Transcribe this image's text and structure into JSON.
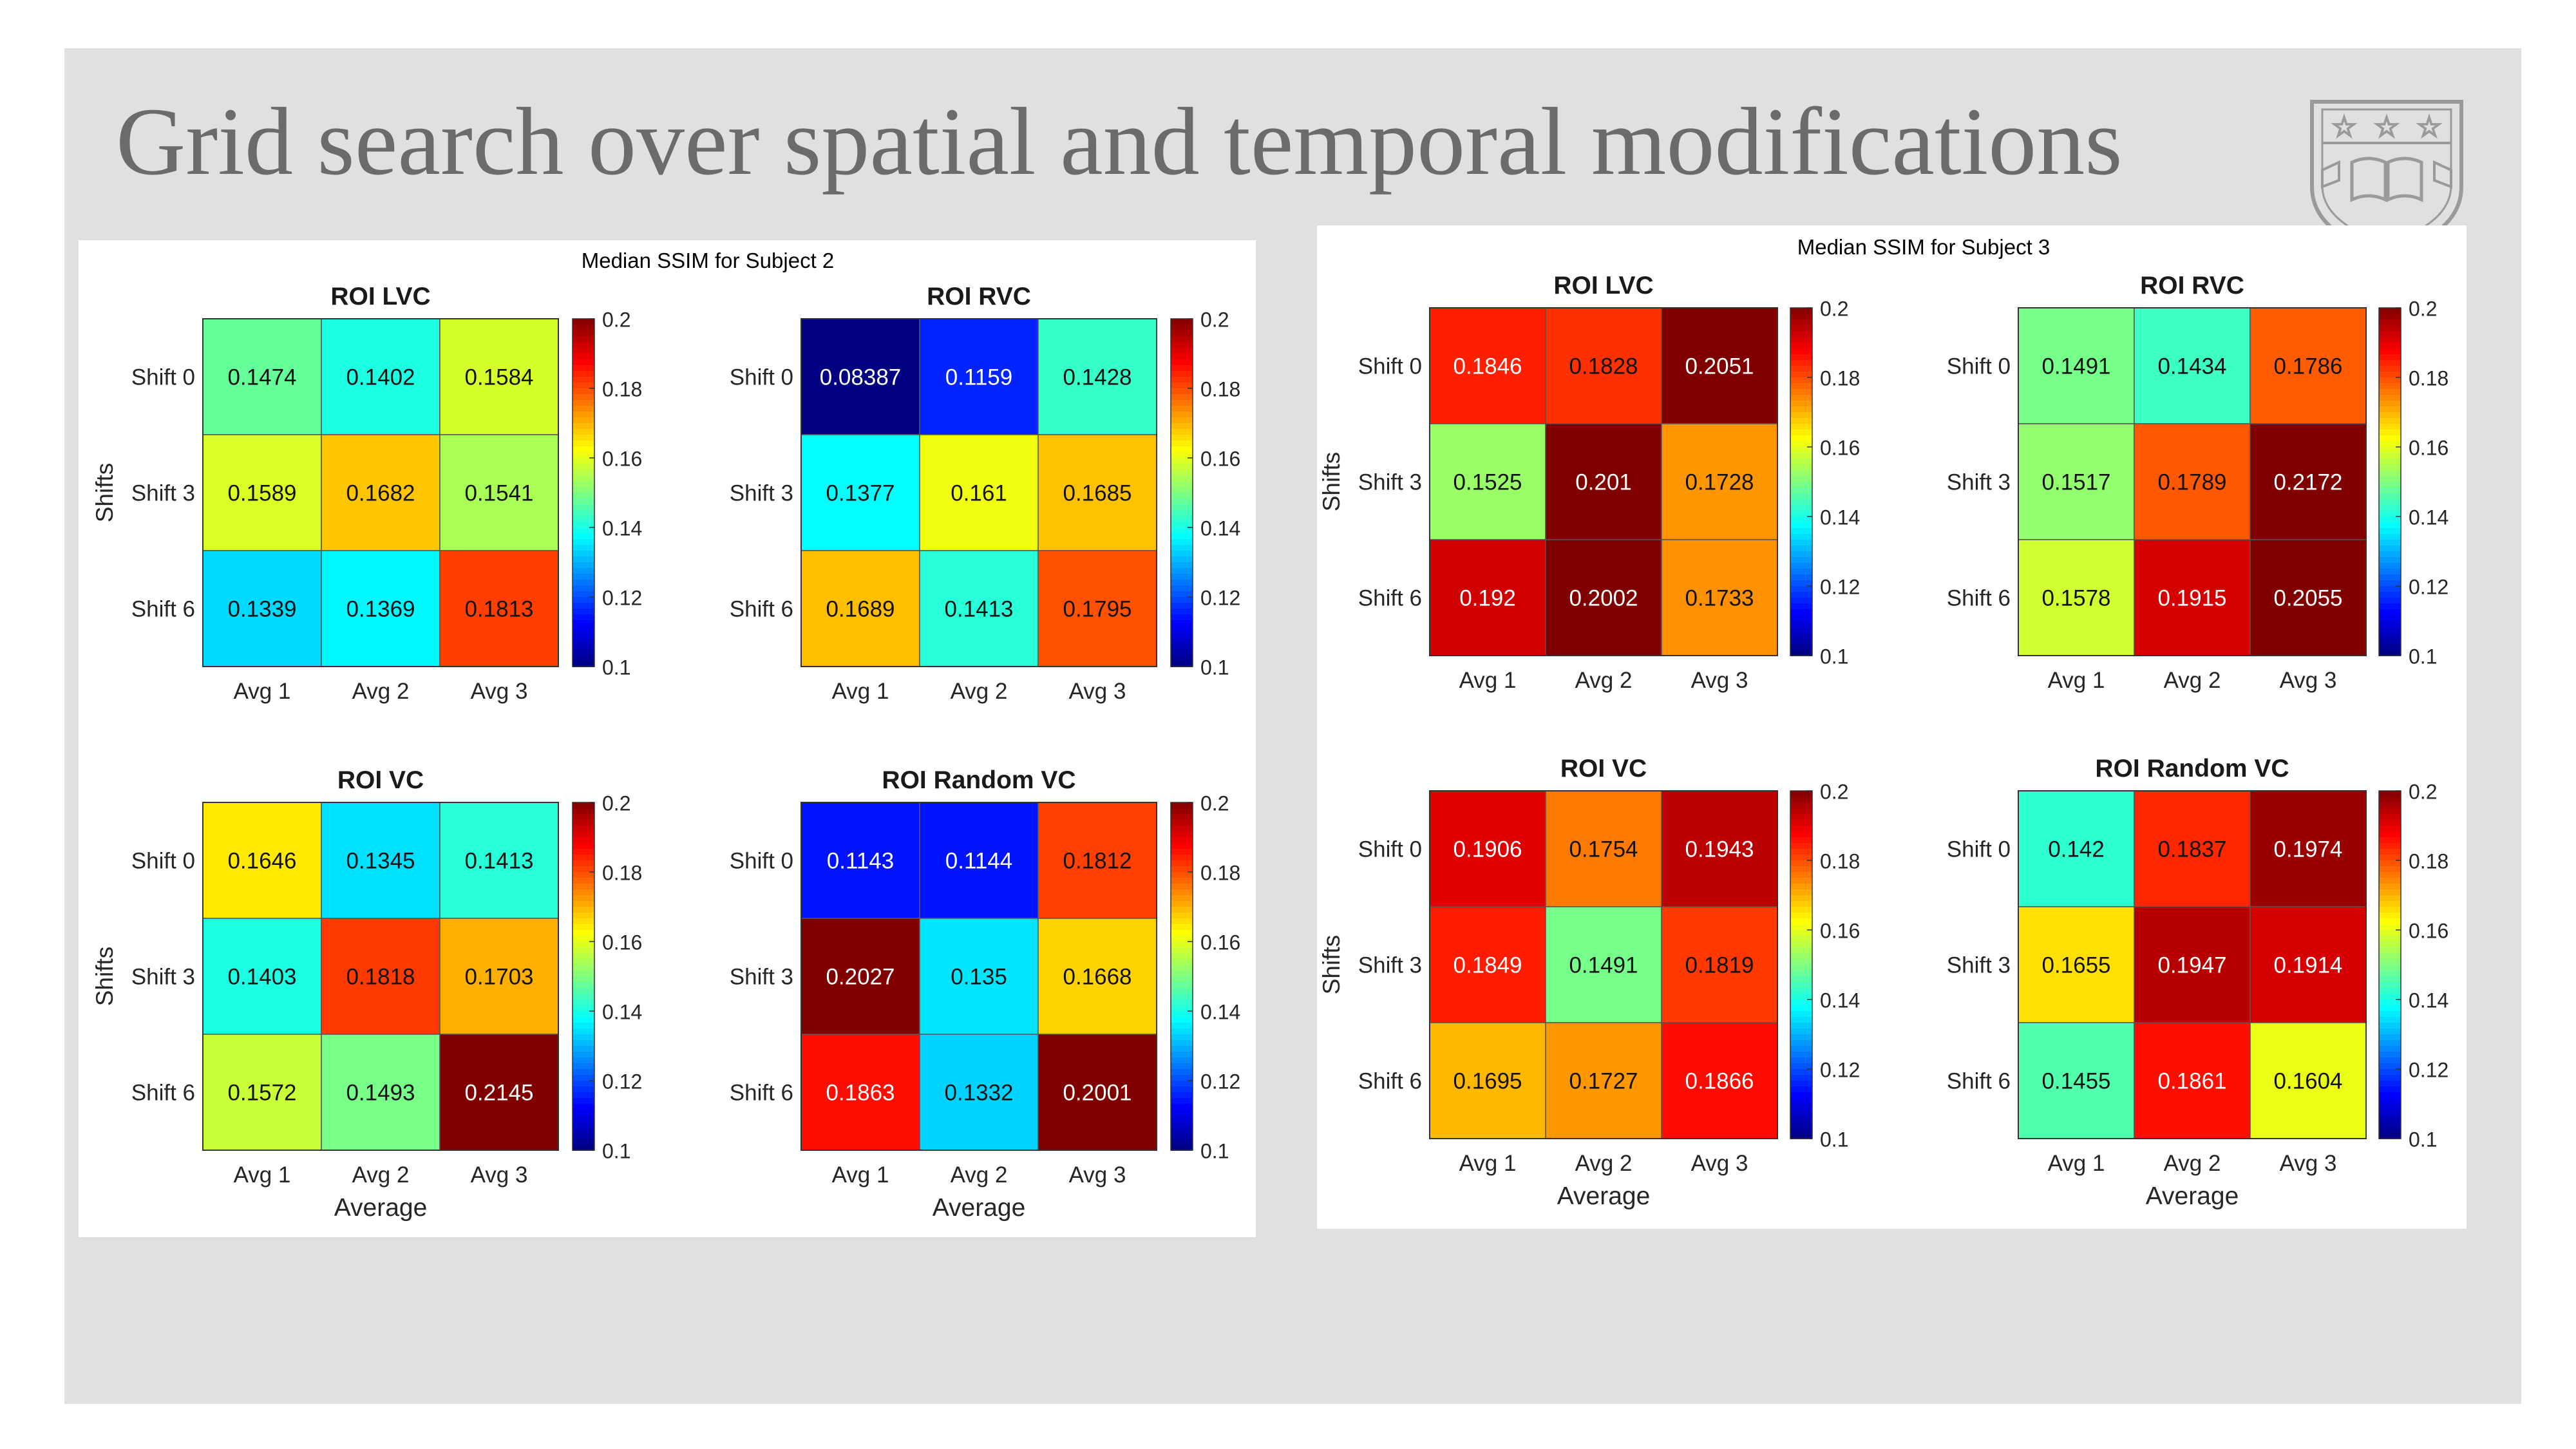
{
  "slide": {
    "title": "Grid search over spatial and temporal modifications",
    "logo_icon": "university-shield-icon"
  },
  "colorbar": {
    "min": 0.1,
    "max": 0.2,
    "ticks": [
      "0.1",
      "0.12",
      "0.14",
      "0.16",
      "0.18",
      "0.2"
    ],
    "colormap": "jet"
  },
  "chart_data": [
    {
      "type": "heatmap",
      "title": "Median SSIM for Subject 2",
      "subplots": [
        {
          "title": "ROI   LVC",
          "rows": [
            "Shift 0",
            "Shift 3",
            "Shift 6"
          ],
          "cols": [
            "Avg 1",
            "Avg 2",
            "Avg 3"
          ],
          "values": [
            [
              "0.1474",
              "0.1402",
              "0.1584"
            ],
            [
              "0.1589",
              "0.1682",
              "0.1541"
            ],
            [
              "0.1339",
              "0.1369",
              "0.1813"
            ]
          ],
          "ylabel": "Shifts",
          "xlabel": ""
        },
        {
          "title": "ROI   RVC",
          "rows": [
            "Shift 0",
            "Shift 3",
            "Shift 6"
          ],
          "cols": [
            "Avg 1",
            "Avg 2",
            "Avg 3"
          ],
          "values": [
            [
              "0.08387",
              "0.1159",
              "0.1428"
            ],
            [
              "0.1377",
              "0.161",
              "0.1685"
            ],
            [
              "0.1689",
              "0.1413",
              "0.1795"
            ]
          ],
          "ylabel": "",
          "xlabel": ""
        },
        {
          "title": "ROI   VC",
          "rows": [
            "Shift 0",
            "Shift 3",
            "Shift 6"
          ],
          "cols": [
            "Avg 1",
            "Avg 2",
            "Avg 3"
          ],
          "values": [
            [
              "0.1646",
              "0.1345",
              "0.1413"
            ],
            [
              "0.1403",
              "0.1818",
              "0.1703"
            ],
            [
              "0.1572",
              "0.1493",
              "0.2145"
            ]
          ],
          "ylabel": "Shifts",
          "xlabel": "Average"
        },
        {
          "title": "ROI   Random VC",
          "rows": [
            "Shift 0",
            "Shift 3",
            "Shift 6"
          ],
          "cols": [
            "Avg 1",
            "Avg 2",
            "Avg 3"
          ],
          "values": [
            [
              "0.1143",
              "0.1144",
              "0.1812"
            ],
            [
              "0.2027",
              "0.135",
              "0.1668"
            ],
            [
              "0.1863",
              "0.1332",
              "0.2001"
            ]
          ],
          "ylabel": "",
          "xlabel": "Average"
        }
      ]
    },
    {
      "type": "heatmap",
      "title": "Median SSIM for Subject 3",
      "subplots": [
        {
          "title": "ROI   LVC",
          "rows": [
            "Shift 0",
            "Shift 3",
            "Shift 6"
          ],
          "cols": [
            "Avg 1",
            "Avg 2",
            "Avg 3"
          ],
          "values": [
            [
              "0.1846",
              "0.1828",
              "0.2051"
            ],
            [
              "0.1525",
              "0.201",
              "0.1728"
            ],
            [
              "0.192",
              "0.2002",
              "0.1733"
            ]
          ],
          "ylabel": "Shifts",
          "xlabel": ""
        },
        {
          "title": "ROI   RVC",
          "rows": [
            "Shift 0",
            "Shift 3",
            "Shift 6"
          ],
          "cols": [
            "Avg 1",
            "Avg 2",
            "Avg 3"
          ],
          "values": [
            [
              "0.1491",
              "0.1434",
              "0.1786"
            ],
            [
              "0.1517",
              "0.1789",
              "0.2172"
            ],
            [
              "0.1578",
              "0.1915",
              "0.2055"
            ]
          ],
          "ylabel": "",
          "xlabel": ""
        },
        {
          "title": "ROI   VC",
          "rows": [
            "Shift 0",
            "Shift 3",
            "Shift 6"
          ],
          "cols": [
            "Avg 1",
            "Avg 2",
            "Avg 3"
          ],
          "values": [
            [
              "0.1906",
              "0.1754",
              "0.1943"
            ],
            [
              "0.1849",
              "0.1491",
              "0.1819"
            ],
            [
              "0.1695",
              "0.1727",
              "0.1866"
            ]
          ],
          "ylabel": "Shifts",
          "xlabel": "Average"
        },
        {
          "title": "ROI   Random VC",
          "rows": [
            "Shift 0",
            "Shift 3",
            "Shift 6"
          ],
          "cols": [
            "Avg 1",
            "Avg 2",
            "Avg 3"
          ],
          "values": [
            [
              "0.142",
              "0.1837",
              "0.1974"
            ],
            [
              "0.1655",
              "0.1947",
              "0.1914"
            ],
            [
              "0.1455",
              "0.1861",
              "0.1604"
            ]
          ],
          "ylabel": "",
          "xlabel": "Average"
        }
      ]
    }
  ]
}
